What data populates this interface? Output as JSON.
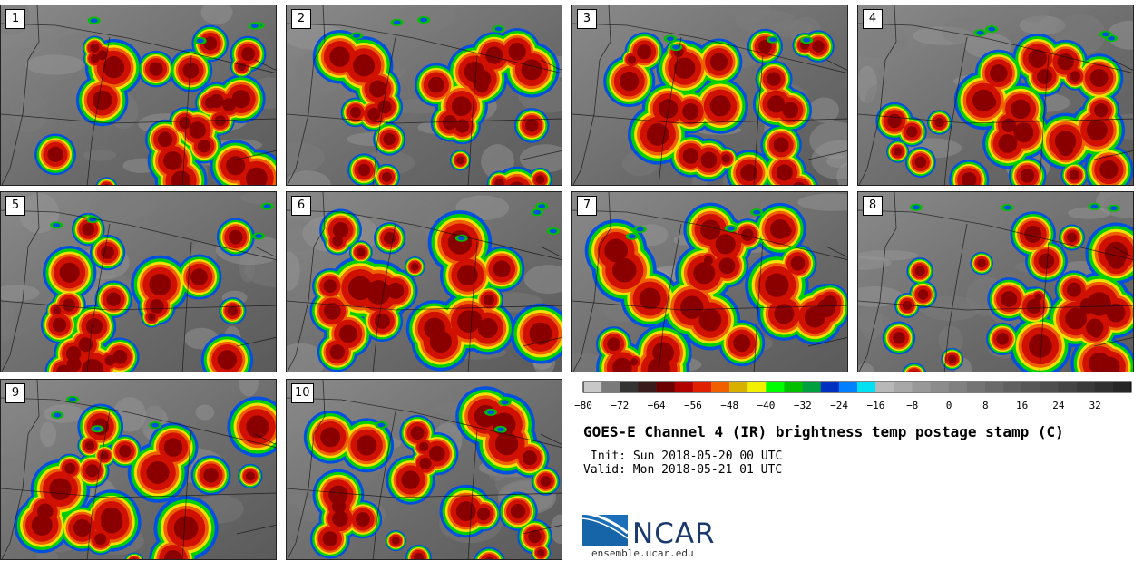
{
  "panels": [
    {
      "label": "1",
      "seed": 11
    },
    {
      "label": "2",
      "seed": 23
    },
    {
      "label": "3",
      "seed": 37
    },
    {
      "label": "4",
      "seed": 41
    },
    {
      "label": "5",
      "seed": 53
    },
    {
      "label": "6",
      "seed": 67
    },
    {
      "label": "7",
      "seed": 71
    },
    {
      "label": "8",
      "seed": 89
    },
    {
      "label": "9",
      "seed": 97
    },
    {
      "label": "10",
      "seed": 103
    }
  ],
  "colorbar": {
    "ticks": [
      "−80",
      "−72",
      "−64",
      "−56",
      "−48",
      "−40",
      "−32",
      "−24",
      "−16",
      "−8",
      "0",
      "8",
      "16",
      "24",
      "32"
    ],
    "colors": [
      "#c8c8c8",
      "#7a7a7a",
      "#333333",
      "#3a1a1a",
      "#6a0000",
      "#b00000",
      "#e02000",
      "#f06000",
      "#d8b000",
      "#f0f000",
      "#00ff00",
      "#00c000",
      "#00a040",
      "#0030c0",
      "#0080ff",
      "#00e0f0",
      "#b8b8b8",
      "#a8a8a8",
      "#989898",
      "#8c8c8c",
      "#808080",
      "#747474",
      "#6a6a6a",
      "#606060",
      "#575757",
      "#4e4e4e",
      "#444444",
      "#3a3a3a",
      "#303030",
      "#262626"
    ]
  },
  "title": "GOES-E Channel 4 (IR) brightness temp postage stamp (C)",
  "init": "Init: Sun 2018-05-20 00 UTC",
  "valid": "Valid: Mon 2018-05-21 01 UTC",
  "logo": {
    "text": "NCAR",
    "site": "ensemble.ucar.edu",
    "colors": {
      "blue": "#1a6fb8",
      "dark": "#1a3a6e"
    }
  }
}
